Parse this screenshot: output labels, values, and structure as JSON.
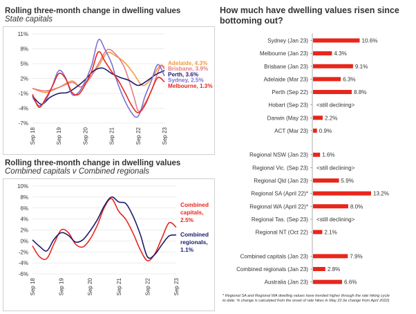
{
  "colors": {
    "red": "#e8261b",
    "navy": "#1c1a6b",
    "orange": "#f39a3c",
    "pink": "#e67a86",
    "purple": "#7c6fd0",
    "grid": "#d9d9d9",
    "bar": "#e8261b",
    "text": "#333333"
  },
  "panel1": {
    "title": "Rolling three-month change in dwelling values",
    "subtitle": "State capitals"
  },
  "panel2": {
    "title": "Rolling three-month change in dwelling values",
    "subtitle": "Combined capitals v Combined regionals"
  },
  "right": {
    "title_line1": "How much have dwelling values risen since",
    "title_line2": "bottoming out?",
    "footnote_line1": "* Regional SA and Regional WA dwelling values have trended higher through the rate hiking cycle",
    "footnote_line2": "to date.  % change is calculated from the onset of rate hikes in May 22 (ie change from April 2022)"
  },
  "chart_data": [
    {
      "type": "line",
      "title": "Rolling three-month change in dwelling values",
      "subtitle": "State capitals",
      "ylim": [
        -7,
        11
      ],
      "y_ticks": [
        "11%",
        "8%",
        "5%",
        "2%",
        "-1%",
        "-4%",
        "-7%"
      ],
      "y_tick_values": [
        11,
        8,
        5,
        2,
        -1,
        -4,
        -7
      ],
      "x_ticks": [
        "Sep 18",
        "Sep 19",
        "Sep 20",
        "Sep 21",
        "Sep 22",
        "Sep 23"
      ],
      "x_tick_positions": [
        0,
        12,
        24,
        36,
        48,
        60
      ],
      "x_range": [
        0,
        60
      ],
      "series": [
        {
          "name": "Adelaide, 4.3%",
          "color": "#f39a3c",
          "x": [
            0,
            6,
            12,
            18,
            22,
            26,
            30,
            34,
            38,
            42,
            46,
            50,
            54,
            58,
            60
          ],
          "values": [
            0,
            -0.8,
            0.2,
            1.5,
            0.3,
            2.2,
            4.5,
            7.2,
            6.5,
            5.2,
            3.0,
            0.6,
            2.0,
            4.6,
            4.3
          ]
        },
        {
          "name": "Brisbane, 3.9%",
          "color": "#e67a86",
          "x": [
            0,
            6,
            12,
            18,
            22,
            26,
            30,
            34,
            38,
            42,
            46,
            48,
            50,
            54,
            58,
            60
          ],
          "values": [
            0,
            -0.5,
            0.2,
            1.2,
            0.3,
            2.0,
            5.0,
            7.8,
            6.8,
            4.0,
            -1.5,
            -4.5,
            -3.8,
            -0.5,
            4.3,
            3.9
          ]
        },
        {
          "name": "Perth, 3.6%",
          "color": "#1c1a6b",
          "x": [
            0,
            4,
            8,
            12,
            16,
            20,
            24,
            28,
            32,
            36,
            40,
            44,
            48,
            52,
            56,
            60
          ],
          "values": [
            -1.5,
            -3.2,
            -1.8,
            -1.0,
            -0.8,
            0.3,
            1.8,
            3.6,
            4.1,
            3.0,
            2.2,
            1.6,
            0.6,
            1.5,
            2.8,
            3.6
          ]
        },
        {
          "name": "Sydney, 2.5%",
          "color": "#7c6fd0",
          "x": [
            0,
            3,
            6,
            9,
            12,
            15,
            18,
            21,
            24,
            27,
            30,
            33,
            36,
            38,
            41,
            44,
            47,
            49,
            51,
            54,
            57,
            60
          ],
          "values": [
            -1.8,
            -3.5,
            -2.4,
            0.5,
            3.6,
            2.2,
            -1.2,
            -0.8,
            1.5,
            4.8,
            9.8,
            7.8,
            5.0,
            2.0,
            -1.5,
            -4.2,
            -5.8,
            -4.8,
            -1.8,
            1.5,
            4.8,
            2.5
          ]
        },
        {
          "name": "Melbourne, 1.3%",
          "color": "#e8261b",
          "x": [
            0,
            3,
            6,
            9,
            12,
            15,
            18,
            21,
            24,
            27,
            30,
            33,
            36,
            39,
            42,
            45,
            48,
            51,
            54,
            57,
            60
          ],
          "values": [
            -1.2,
            -3.8,
            -2.0,
            0.4,
            3.0,
            2.0,
            -0.8,
            -1.2,
            0.8,
            3.6,
            7.4,
            5.4,
            3.4,
            1.6,
            -0.8,
            -3.4,
            -4.9,
            -3.5,
            -0.5,
            2.2,
            1.3
          ]
        }
      ]
    },
    {
      "type": "line",
      "title": "Rolling three-month change in dwelling values",
      "subtitle": "Combined capitals v Combined regionals",
      "ylim": [
        -6,
        10
      ],
      "y_ticks": [
        "10%",
        "8%",
        "6%",
        "4%",
        "2%",
        "0%",
        "-2%",
        "-4%",
        "-6%"
      ],
      "y_tick_values": [
        10,
        8,
        6,
        4,
        2,
        0,
        -2,
        -4,
        -6
      ],
      "x_ticks": [
        "Sep 18",
        "Sep 19",
        "Sep 20",
        "Sep 21",
        "Sep 22",
        "Sep 23"
      ],
      "x_tick_positions": [
        0,
        12,
        24,
        36,
        48,
        60
      ],
      "x_range": [
        0,
        60
      ],
      "series": [
        {
          "name": "Combined capitals, 2.5%",
          "label_lines": [
            "Combined",
            "capitals,",
            "2.5%"
          ],
          "color": "#e8261b",
          "x": [
            0,
            3,
            6,
            9,
            12,
            15,
            18,
            21,
            24,
            27,
            30,
            33,
            36,
            39,
            42,
            45,
            48,
            51,
            54,
            57,
            60
          ],
          "values": [
            -0.9,
            -2.9,
            -3.2,
            -0.5,
            2.0,
            1.5,
            -0.6,
            -1.1,
            0.3,
            2.8,
            6.1,
            7.7,
            5.4,
            3.9,
            1.4,
            -1.6,
            -3.6,
            -2.4,
            0.5,
            3.3,
            2.5
          ]
        },
        {
          "name": "Combined regionals, 1.1%",
          "label_lines": [
            "Combined",
            "regionals,",
            "1.1%"
          ],
          "color": "#1c1a6b",
          "x": [
            0,
            3,
            6,
            9,
            12,
            15,
            18,
            21,
            24,
            27,
            30,
            33,
            36,
            39,
            42,
            45,
            48,
            51,
            54,
            57,
            60
          ],
          "values": [
            0.2,
            -1.0,
            -1.8,
            0.3,
            1.5,
            1.0,
            -0.2,
            0.2,
            1.8,
            3.8,
            6.4,
            8.0,
            7.1,
            6.8,
            4.5,
            1.2,
            -2.9,
            -2.5,
            -0.7,
            0.9,
            1.1
          ]
        }
      ]
    },
    {
      "type": "bar",
      "orientation": "horizontal",
      "title": "How much have dwelling values risen since bottoming out?",
      "xlim": [
        0,
        14
      ],
      "groups": [
        {
          "items": [
            {
              "label": "Sydney (Jan 23)",
              "value": 10.6,
              "value_label": "10.6%"
            },
            {
              "label": "Melbourne (Jan 23)",
              "value": 4.3,
              "value_label": "4.3%"
            },
            {
              "label": "Brisbane (Jan 23)",
              "value": 9.1,
              "value_label": "9.1%"
            },
            {
              "label": "Adelaide (Mar 23)",
              "value": 6.3,
              "value_label": "6.3%"
            },
            {
              "label": "Perth (Sep 22)",
              "value": 8.8,
              "value_label": "8.8%"
            },
            {
              "label": "Hobart (Sep 23)",
              "value": null,
              "value_label": "<still declining>"
            },
            {
              "label": "Darwin (May 23)",
              "value": 2.2,
              "value_label": "2.2%"
            },
            {
              "label": "ACT (Mar 23)",
              "value": 0.9,
              "value_label": "0.9%"
            }
          ]
        },
        {
          "items": [
            {
              "label": "Regional NSW (Jan 23)",
              "value": 1.6,
              "value_label": "1.6%"
            },
            {
              "label": "Regional Vic. (Sep 23)",
              "value": null,
              "value_label": "<still declining>"
            },
            {
              "label": "Regional Qld (Jan 23)",
              "value": 5.9,
              "value_label": "5.9%"
            },
            {
              "label": "Regional SA (April 22)*",
              "value": 13.2,
              "value_label": "13.2%"
            },
            {
              "label": "Regional WA (April 22)*",
              "value": 8.0,
              "value_label": "8.0%"
            },
            {
              "label": "Regional Tas. (Sep 23)",
              "value": null,
              "value_label": "<still declining>"
            },
            {
              "label": "Regional NT (Oct 22)",
              "value": 2.1,
              "value_label": "2.1%"
            }
          ]
        },
        {
          "items": [
            {
              "label": "Combined capitals (Jan 23)",
              "value": 7.9,
              "value_label": "7.9%"
            },
            {
              "label": "Combined regionals (Jan 23)",
              "value": 2.8,
              "value_label": "2.8%"
            },
            {
              "label": "Australia (Jan 23)",
              "value": 6.6,
              "value_label": "6.6%"
            }
          ]
        }
      ]
    }
  ]
}
